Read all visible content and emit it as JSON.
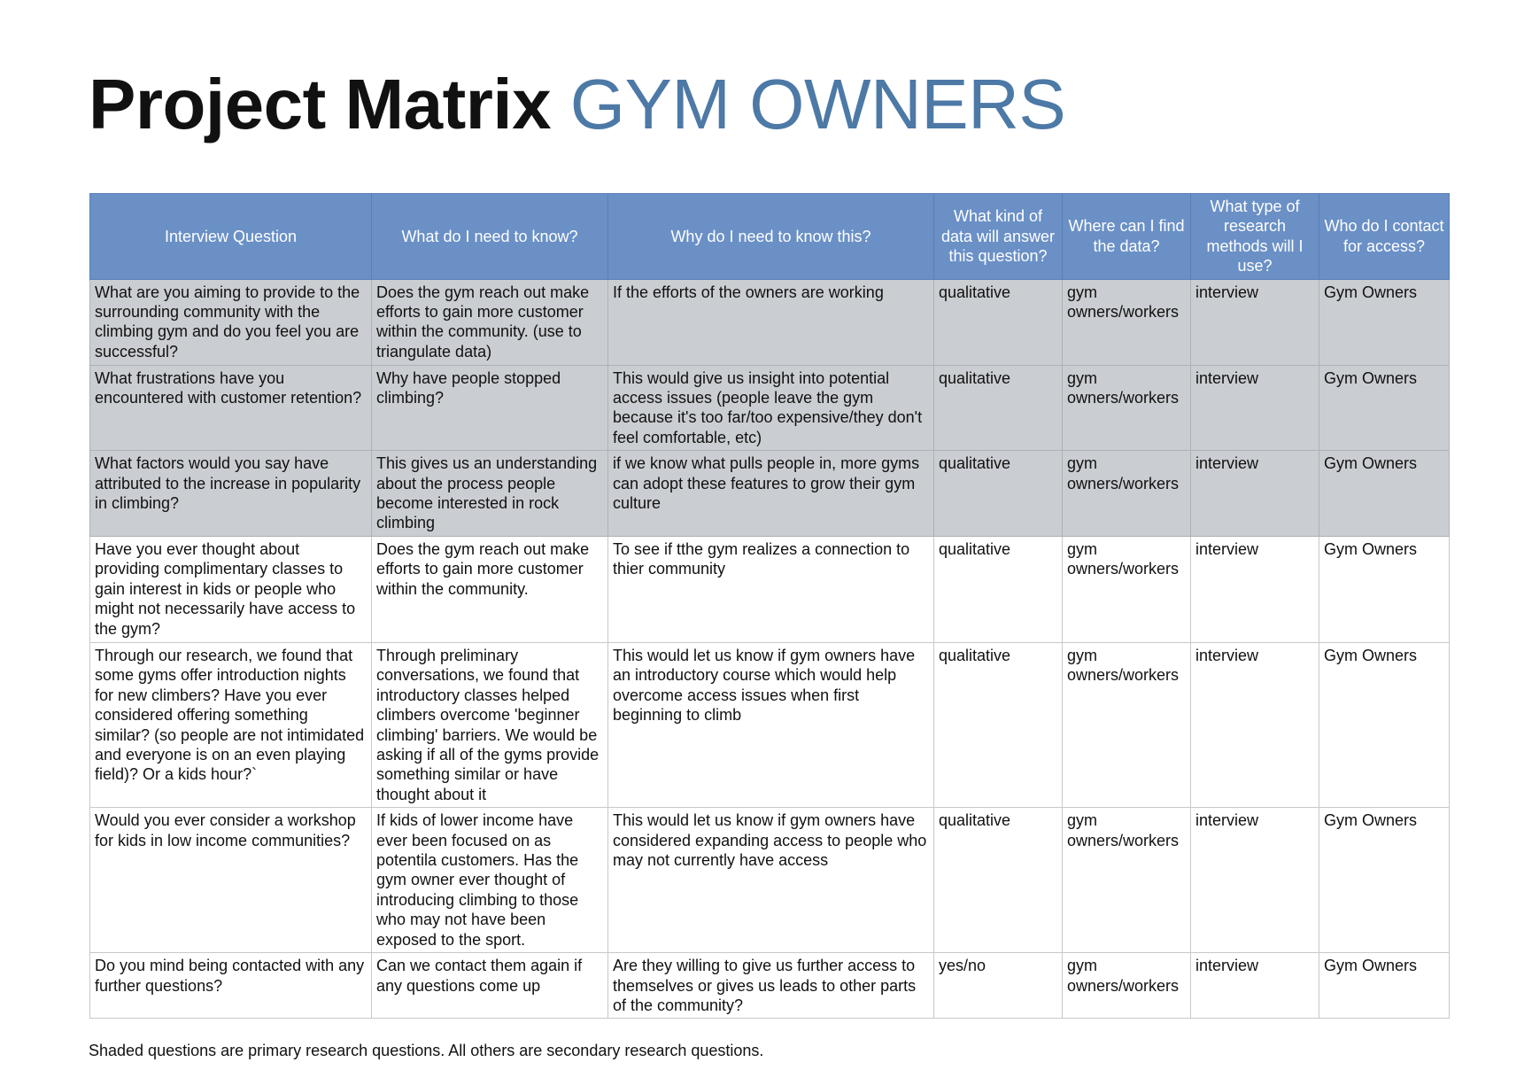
{
  "header": {
    "title": "Project Matrix",
    "subtitle": "GYM OWNERS"
  },
  "table": {
    "columns": [
      "Interview Question",
      "What do I need to know?",
      "Why do I need to know this?",
      "What kind of data will answer this question?",
      "Where can I find the data?",
      "What type of research methods will I use?",
      "Who do I contact for access?"
    ],
    "rows": [
      {
        "shaded": true,
        "cells": [
          "What are you aiming to provide to the surrounding community with the climbing gym and do you feel you are successful?",
          "Does the gym reach out make efforts to gain more customer within the community. (use to triangulate data)",
          "If the efforts of the owners are working",
          "qualitative",
          "gym owners/workers",
          "interview",
          "Gym Owners"
        ]
      },
      {
        "shaded": true,
        "cells": [
          "What frustrations have you encountered with customer retention?",
          "Why have people stopped climbing?",
          "This would give us insight into potential access issues (people leave the gym because it's too far/too expensive/they don't feel comfortable, etc)",
          "qualitative",
          "gym owners/workers",
          "interview",
          "Gym Owners"
        ]
      },
      {
        "shaded": true,
        "cells": [
          "What factors would you say have attributed to the increase in popularity in climbing?",
          "This gives us an understanding about the process people become interested in rock climbing",
          "if we know what pulls people in, more gyms can adopt these features to grow their gym culture",
          "qualitative",
          "gym owners/workers",
          "interview",
          "Gym Owners"
        ]
      },
      {
        "shaded": false,
        "cells": [
          "Have you ever thought about providing complimentary classes to gain interest in kids or people who might not necessarily have access to the gym?",
          "Does the gym reach out make efforts to gain more customer within the community.",
          "To see if tthe gym realizes a connection to thier community",
          "qualitative",
          "gym owners/workers",
          "interview",
          "Gym Owners"
        ]
      },
      {
        "shaded": false,
        "cells": [
          "Through our research, we found that some gyms offer introduction nights for new climbers? Have you ever considered offering something similar? (so people are not intimidated and everyone is on an even playing field)? Or a kids hour?`",
          "Through preliminary conversations, we found that introductory classes helped climbers overcome 'beginner climbing' barriers. We would be asking if all of the gyms provide something similar or have thought about it",
          "This would let us know if gym owners have an introductory course which would help overcome access issues when first beginning to climb",
          "qualitative",
          "gym owners/workers",
          "interview",
          "Gym Owners"
        ]
      },
      {
        "shaded": false,
        "cells": [
          "Would you ever consider a workshop for kids in low income communities?",
          "If kids of lower income have ever been focused on as potentila customers.  Has the gym owner ever thought of introducing climbing to those who may not have been exposed to the sport.",
          "This would let us know if gym owners have considered expanding access to people who may not currently have access",
          "qualitative",
          "gym owners/workers",
          "interview",
          "Gym Owners"
        ]
      },
      {
        "shaded": false,
        "cells": [
          "Do you mind being contacted with any further questions?",
          "Can we contact them again if any questions come up",
          "Are they willing to give us further access to themselves or gives us leads to other parts of the community?",
          "yes/no",
          "gym owners/workers",
          "interview",
          "Gym Owners"
        ]
      }
    ]
  },
  "footnote": "Shaded questions are primary research questions. All others are secondary research questions."
}
